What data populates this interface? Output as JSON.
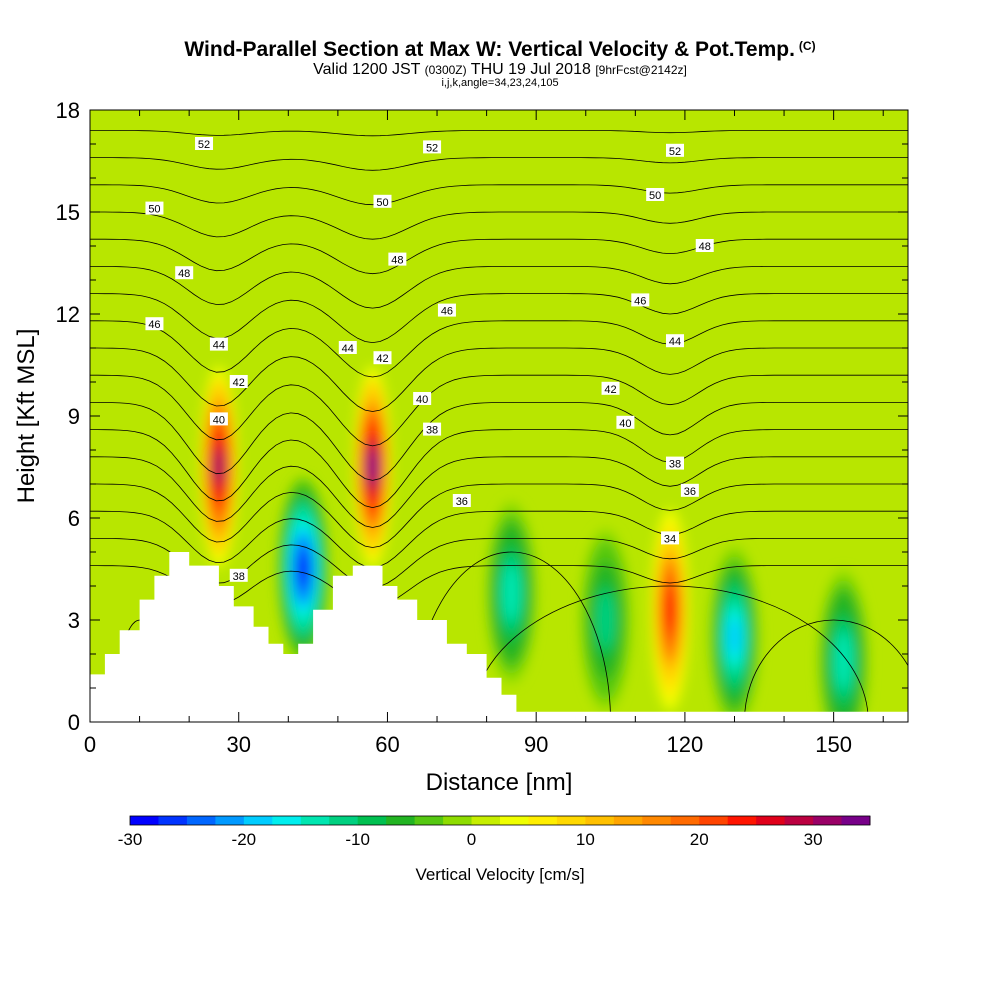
{
  "header": {
    "title": "Wind-Parallel Section at Max W: Vertical Velocity & Pot.Temp.",
    "title_tag": "(C)",
    "subtitle_a": "Valid 1200 JST",
    "subtitle_b": "(0300Z)",
    "subtitle_c": "THU 19 Jul 2018",
    "subtitle_d": "[9hrFcst@2142z]",
    "subtitle_line2": "i,j,k,angle=34,23,24,105"
  },
  "chart_data": {
    "type": "heatmap",
    "xlabel": "Distance [nm]",
    "ylabel": "Height [Kft MSL]",
    "xlim": [
      0,
      165
    ],
    "ylim": [
      0,
      18
    ],
    "xticks": [
      0,
      30,
      60,
      90,
      120,
      150
    ],
    "yticks": [
      0,
      3,
      6,
      9,
      12,
      15,
      18
    ],
    "background_field": "near-zero vertical velocity (green-yellow)",
    "updrafts": [
      {
        "x": 26,
        "y": 7.5,
        "max_cm_s": 30
      },
      {
        "x": 57,
        "y": 7.5,
        "max_cm_s": 33
      },
      {
        "x": 117,
        "y": 3.3,
        "max_cm_s": 24
      }
    ],
    "downdrafts": [
      {
        "x": 43,
        "y": 4.5,
        "min_cm_s": -28
      },
      {
        "x": 85,
        "y": 3.8,
        "min_cm_s": -15
      },
      {
        "x": 104,
        "y": 3.0,
        "min_cm_s": -12
      },
      {
        "x": 130,
        "y": 2.5,
        "min_cm_s": -18
      },
      {
        "x": 152,
        "y": 1.8,
        "min_cm_s": -15
      }
    ],
    "terrain": {
      "x": [
        0,
        3,
        3,
        6,
        6,
        10,
        10,
        13,
        13,
        16,
        16,
        20,
        20,
        26,
        26,
        29,
        29,
        33,
        33,
        36,
        36,
        39,
        39,
        42,
        42,
        45,
        45,
        49,
        49,
        53,
        53,
        59,
        59,
        62,
        62,
        66,
        66,
        72,
        72,
        76,
        76,
        80,
        80,
        83,
        83,
        86,
        86,
        90,
        90,
        165
      ],
      "y": [
        1.4,
        1.4,
        2.0,
        2.0,
        2.7,
        2.7,
        3.6,
        3.6,
        4.3,
        4.3,
        5.0,
        5.0,
        4.6,
        4.6,
        4.0,
        4.0,
        3.4,
        3.4,
        2.8,
        2.8,
        2.3,
        2.3,
        2.0,
        2.0,
        2.3,
        2.3,
        3.3,
        3.3,
        4.3,
        4.3,
        4.6,
        4.6,
        4.0,
        4.0,
        3.6,
        3.6,
        3.0,
        3.0,
        2.3,
        2.3,
        2.0,
        2.0,
        1.3,
        1.3,
        0.8,
        0.8,
        0.3,
        0.3,
        0.3,
        0.3
      ]
    },
    "contour_labels": [
      {
        "text": "52",
        "x": 23,
        "y": 17.0
      },
      {
        "text": "52",
        "x": 69,
        "y": 16.9
      },
      {
        "text": "52",
        "x": 118,
        "y": 16.8
      },
      {
        "text": "50",
        "x": 13,
        "y": 15.1
      },
      {
        "text": "50",
        "x": 59,
        "y": 15.3
      },
      {
        "text": "50",
        "x": 114,
        "y": 15.5
      },
      {
        "text": "48",
        "x": 19,
        "y": 13.2
      },
      {
        "text": "48",
        "x": 62,
        "y": 13.6
      },
      {
        "text": "48",
        "x": 124,
        "y": 14.0
      },
      {
        "text": "46",
        "x": 13,
        "y": 11.7
      },
      {
        "text": "46",
        "x": 72,
        "y": 12.1
      },
      {
        "text": "46",
        "x": 111,
        "y": 12.4
      },
      {
        "text": "44",
        "x": 26,
        "y": 11.1
      },
      {
        "text": "44",
        "x": 52,
        "y": 11.0
      },
      {
        "text": "44",
        "x": 118,
        "y": 11.2
      },
      {
        "text": "42",
        "x": 30,
        "y": 10.0
      },
      {
        "text": "42",
        "x": 59,
        "y": 10.7
      },
      {
        "text": "42",
        "x": 105,
        "y": 9.8
      },
      {
        "text": "40",
        "x": 26,
        "y": 8.9
      },
      {
        "text": "40",
        "x": 67,
        "y": 9.5
      },
      {
        "text": "40",
        "x": 108,
        "y": 8.8
      },
      {
        "text": "38",
        "x": 30,
        "y": 4.3
      },
      {
        "text": "38",
        "x": 69,
        "y": 8.6
      },
      {
        "text": "38",
        "x": 118,
        "y": 7.6
      },
      {
        "text": "36",
        "x": 75,
        "y": 6.5
      },
      {
        "text": "36",
        "x": 121,
        "y": 6.8
      },
      {
        "text": "34",
        "x": 117,
        "y": 5.4
      }
    ]
  },
  "colorbar": {
    "title": "Vertical Velocity [cm/s]",
    "min": -30,
    "max": 35,
    "step": 2.5,
    "tick_labels": [
      "-30",
      "-20",
      "-10",
      "0",
      "10",
      "20",
      "30"
    ],
    "tick_values": [
      -30,
      -20,
      -10,
      0,
      10,
      20,
      30
    ],
    "colors": [
      "#0000ff",
      "#0033ff",
      "#0066ff",
      "#0099ff",
      "#00ccff",
      "#00eeee",
      "#00e6b0",
      "#00d080",
      "#00c050",
      "#22b422",
      "#55c811",
      "#8edc00",
      "#c6ee00",
      "#f0ff00",
      "#ffee00",
      "#ffd800",
      "#ffc000",
      "#ffa500",
      "#ff8800",
      "#ff6a00",
      "#ff4400",
      "#ff1400",
      "#e0001a",
      "#bb0040",
      "#990066",
      "#770088"
    ]
  }
}
